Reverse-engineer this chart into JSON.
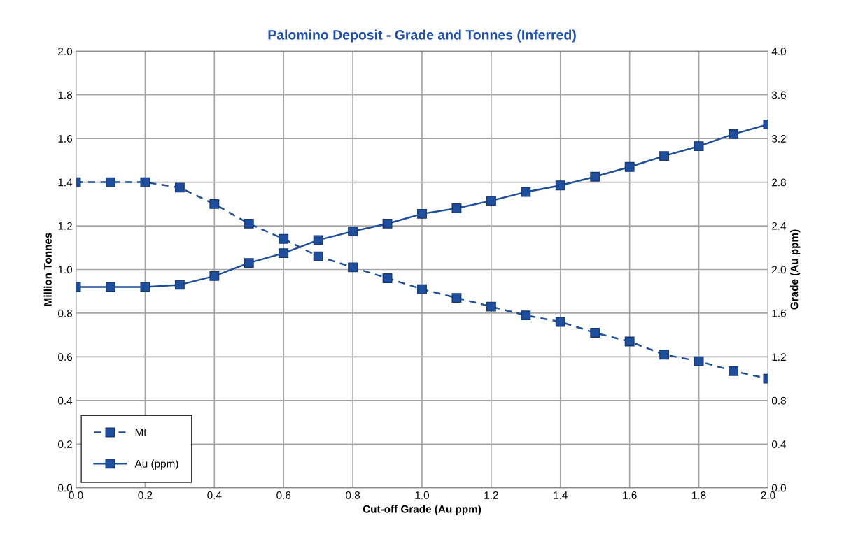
{
  "chart_data": {
    "type": "line",
    "title": "Palomino Deposit - Grade and Tonnes (Inferred)",
    "xlabel": "Cut-off Grade (Au ppm)",
    "ylabel": "Million Tonnes",
    "y2label": "Grade (Au ppm)",
    "x": [
      0.0,
      0.1,
      0.2,
      0.3,
      0.4,
      0.5,
      0.6,
      0.7,
      0.8,
      0.9,
      1.0,
      1.1,
      1.2,
      1.3,
      1.4,
      1.5,
      1.6,
      1.7,
      1.8,
      1.9,
      2.0
    ],
    "series": [
      {
        "name": "Mt",
        "color": "#1f4e9c",
        "line_style": "dashed",
        "values": [
          1.4,
          1.4,
          1.4,
          1.375,
          1.3,
          1.21,
          1.14,
          1.06,
          1.01,
          0.96,
          0.91,
          0.87,
          0.83,
          0.79,
          0.76,
          0.71,
          0.67,
          0.61,
          0.58,
          0.535,
          0.5
        ]
      },
      {
        "name": "Au (ppm)",
        "color": "#1f4e9c",
        "line_style": "solid",
        "axis": "y2",
        "values": [
          1.84,
          1.84,
          1.84,
          1.86,
          1.94,
          2.06,
          2.15,
          2.27,
          2.35,
          2.42,
          2.51,
          2.56,
          2.63,
          2.71,
          2.77,
          2.85,
          2.94,
          3.04,
          3.13,
          3.24,
          3.33
        ]
      }
    ],
    "xlim": [
      0.0,
      2.0
    ],
    "xticks": [
      {
        "value": 0,
        "label": "0.0"
      },
      0.2,
      0.4,
      0.6,
      0.8,
      {
        "value": 1,
        "label": "1.0"
      },
      1.2,
      1.4,
      1.6,
      1.8,
      {
        "value": 2,
        "label": "2.0"
      }
    ],
    "ylim": [
      0.0,
      2.0
    ],
    "yticks": [
      {
        "value": 0,
        "label": "0.0"
      },
      0.2,
      0.4,
      0.6,
      0.8,
      {
        "value": 1,
        "label": "1.0"
      },
      1.2,
      1.4,
      1.6,
      1.8,
      {
        "value": 2,
        "label": "2.0"
      }
    ],
    "y2lim": [
      0.0,
      4.0
    ],
    "y2ticks": [
      {
        "value": 0,
        "label": "0.0"
      },
      0.4,
      0.8,
      1.2,
      1.6,
      {
        "value": 2,
        "label": "2.0"
      },
      2.4,
      2.8,
      3.2,
      3.6,
      {
        "value": 4,
        "label": "4.0"
      }
    ],
    "grid": true,
    "legend": "bottom left",
    "marker": "square"
  }
}
